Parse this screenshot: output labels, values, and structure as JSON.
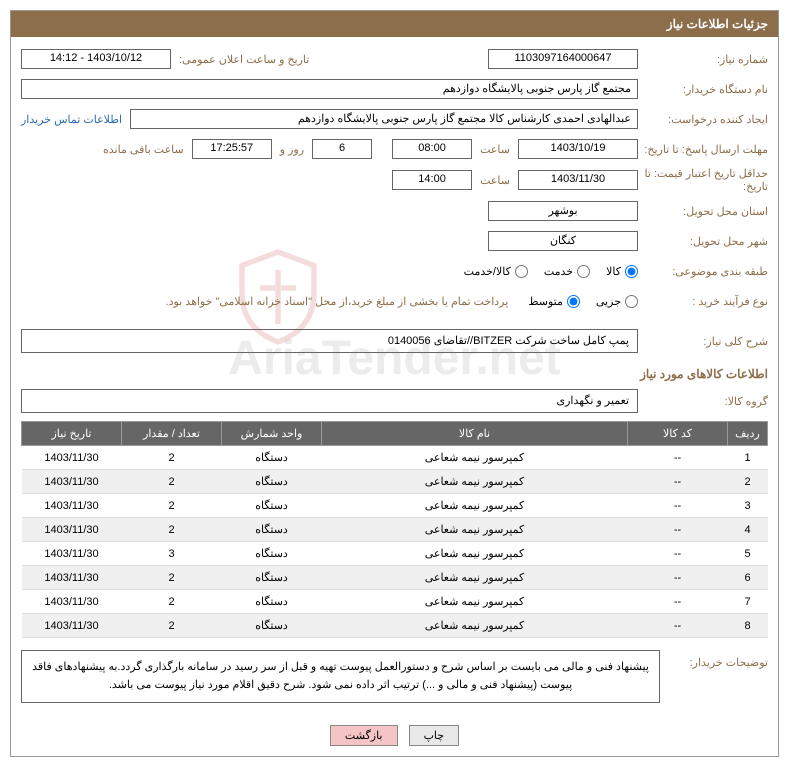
{
  "header": {
    "title": "جزئیات اطلاعات نیاز"
  },
  "form": {
    "need_no_lbl": "شماره نیاز:",
    "need_no": "1103097164000647",
    "announce_lbl": "تاریخ و ساعت اعلان عمومی:",
    "announce": "1403/10/12 - 14:12",
    "buyer_org_lbl": "نام دستگاه خریدار:",
    "buyer_org": "مجتمع گاز پارس جنوبی  پالایشگاه دوازدهم",
    "requester_lbl": "ایجاد کننده درخواست:",
    "requester": "عبدالهادی احمدی کارشناس کالا مجتمع گاز پارس جنوبی  پالایشگاه دوازدهم",
    "contact_link": "اطلاعات تماس خریدار",
    "deadline_lbl": "مهلت ارسال پاسخ: تا تاریخ:",
    "deadline_date": "1403/10/19",
    "time_lbl": "ساعت",
    "deadline_time": "08:00",
    "days": "6",
    "days_and_lbl": "روز و",
    "countdown": "17:25:57",
    "remaining_lbl": "ساعت باقی مانده",
    "validity_lbl": "حداقل تاریخ اعتبار قیمت: تا تاریخ:",
    "validity_date": "1403/11/30",
    "validity_time": "14:00",
    "province_lbl": "استان محل تحویل:",
    "province": "بوشهر",
    "city_lbl": "شهر محل تحویل:",
    "city": "کنگان",
    "category_lbl": "طبقه بندی موضوعی:",
    "cat_goods": "کالا",
    "cat_service": "خدمت",
    "cat_both": "کالا/خدمت",
    "purchase_type_lbl": "نوع فرآیند خرید :",
    "pt_small": "جزیی",
    "pt_medium": "متوسط",
    "purchase_note": "پرداخت تمام یا بخشی از مبلغ خرید،از محل \"اسناد خزانه اسلامی\" خواهد بود.",
    "general_desc_lbl": "شرح کلی نیاز:",
    "general_desc": "پمپ کامل ساخت شرکت BITZER//تقاضای 0140056",
    "goods_section": "اطلاعات کالاهای مورد نیاز",
    "goods_group_lbl": "گروه کالا:",
    "goods_group": "تعمیر و نگهداری"
  },
  "table": {
    "headers": {
      "row": "ردیف",
      "code": "کد کالا",
      "name": "نام کالا",
      "unit": "واحد شمارش",
      "qty": "تعداد / مقدار",
      "date": "تاریخ نیاز"
    },
    "rows": [
      {
        "n": "1",
        "code": "--",
        "name": "کمپرسور نیمه شعاعی",
        "unit": "دستگاه",
        "qty": "2",
        "date": "1403/11/30"
      },
      {
        "n": "2",
        "code": "--",
        "name": "کمپرسور نیمه شعاعی",
        "unit": "دستگاه",
        "qty": "2",
        "date": "1403/11/30"
      },
      {
        "n": "3",
        "code": "--",
        "name": "کمپرسور نیمه شعاعی",
        "unit": "دستگاه",
        "qty": "2",
        "date": "1403/11/30"
      },
      {
        "n": "4",
        "code": "--",
        "name": "کمپرسور نیمه شعاعی",
        "unit": "دستگاه",
        "qty": "2",
        "date": "1403/11/30"
      },
      {
        "n": "5",
        "code": "--",
        "name": "کمپرسور نیمه شعاعی",
        "unit": "دستگاه",
        "qty": "3",
        "date": "1403/11/30"
      },
      {
        "n": "6",
        "code": "--",
        "name": "کمپرسور نیمه شعاعی",
        "unit": "دستگاه",
        "qty": "2",
        "date": "1403/11/30"
      },
      {
        "n": "7",
        "code": "--",
        "name": "کمپرسور نیمه شعاعی",
        "unit": "دستگاه",
        "qty": "2",
        "date": "1403/11/30"
      },
      {
        "n": "8",
        "code": "--",
        "name": "کمپرسور نیمه شعاعی",
        "unit": "دستگاه",
        "qty": "2",
        "date": "1403/11/30"
      }
    ]
  },
  "buyer_note": {
    "lbl": "توضیحات خریدار:",
    "text": "پیشنهاد فنی و مالی می بایست بر اساس شرح و دستورالعمل پیوست تهیه و قبل از سر رسید در سامانه بارگذاری گردد.به پیشنهادهای فاقد پیوست (پیشنهاد فنی و مالی و ...) ترتیب اثر داده نمی شود. شرح دقیق اقلام مورد نیاز پیوست می باشد."
  },
  "buttons": {
    "print": "چاپ",
    "back": "بازگشت"
  },
  "watermark": "AriaTender.net"
}
